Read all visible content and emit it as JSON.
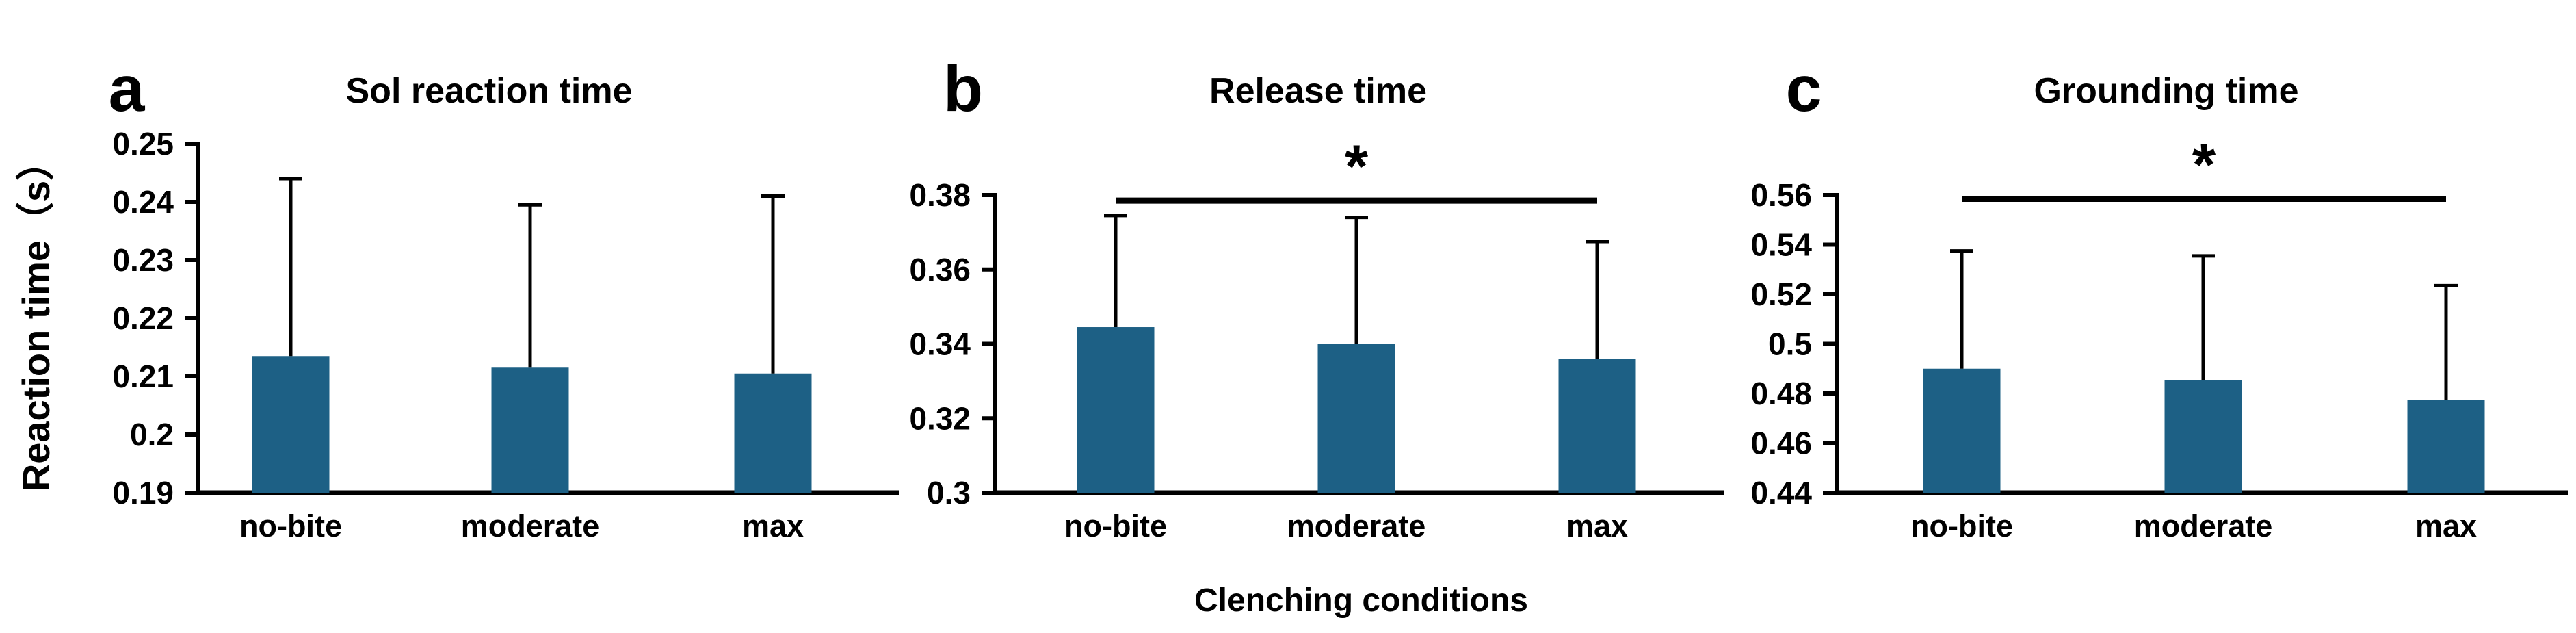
{
  "figure": {
    "xlabel": "Clenching conditions",
    "ylabel": "Reaction time（s）"
  },
  "colors": {
    "bar": "#1d6085",
    "axis": "#000000",
    "text": "#000000",
    "background": "#ffffff"
  },
  "chart_data": [
    {
      "panel": "a",
      "type": "bar",
      "title": "Sol reaction time",
      "xlabel": "",
      "ylabel": "Reaction time（s）",
      "categories": [
        "no-bite",
        "moderate",
        "max"
      ],
      "values": [
        0.2135,
        0.2115,
        0.2105
      ],
      "error_top": [
        0.244,
        0.2395,
        0.241
      ],
      "ylim": [
        0.19,
        0.25
      ],
      "yticks": [
        "0.25",
        "0.24",
        "0.23",
        "0.22",
        "0.21",
        "0.2",
        "0.19"
      ],
      "grid": "off",
      "legend": "none",
      "significance": null
    },
    {
      "panel": "b",
      "type": "bar",
      "title": "Release time",
      "xlabel": "Clenching conditions",
      "ylabel": "",
      "categories": [
        "no-bite",
        "moderate",
        "max"
      ],
      "values": [
        0.3445,
        0.34,
        0.336
      ],
      "error_top": [
        0.3745,
        0.374,
        0.3675
      ],
      "ylim": [
        0.3,
        0.38
      ],
      "yticks": [
        "0.38",
        "0.36",
        "0.34",
        "0.32",
        "0.3"
      ],
      "grid": "off",
      "legend": "none",
      "significance": {
        "from": "no-bite",
        "to": "max",
        "label": "*",
        "y": 0.3785
      }
    },
    {
      "panel": "c",
      "type": "bar",
      "title": "Grounding time",
      "xlabel": "",
      "ylabel": "",
      "categories": [
        "no-bite",
        "moderate",
        "max"
      ],
      "values": [
        0.49,
        0.4855,
        0.4775
      ],
      "error_top": [
        0.5375,
        0.5355,
        0.5235
      ],
      "ylim": [
        0.44,
        0.56
      ],
      "yticks": [
        "0.56",
        "0.54",
        "0.52",
        "0.5",
        "0.48",
        "0.46",
        "0.44"
      ],
      "grid": "off",
      "legend": "none",
      "significance": {
        "from": "no-bite",
        "to": "max",
        "label": "*",
        "y": 0.5585
      }
    }
  ]
}
